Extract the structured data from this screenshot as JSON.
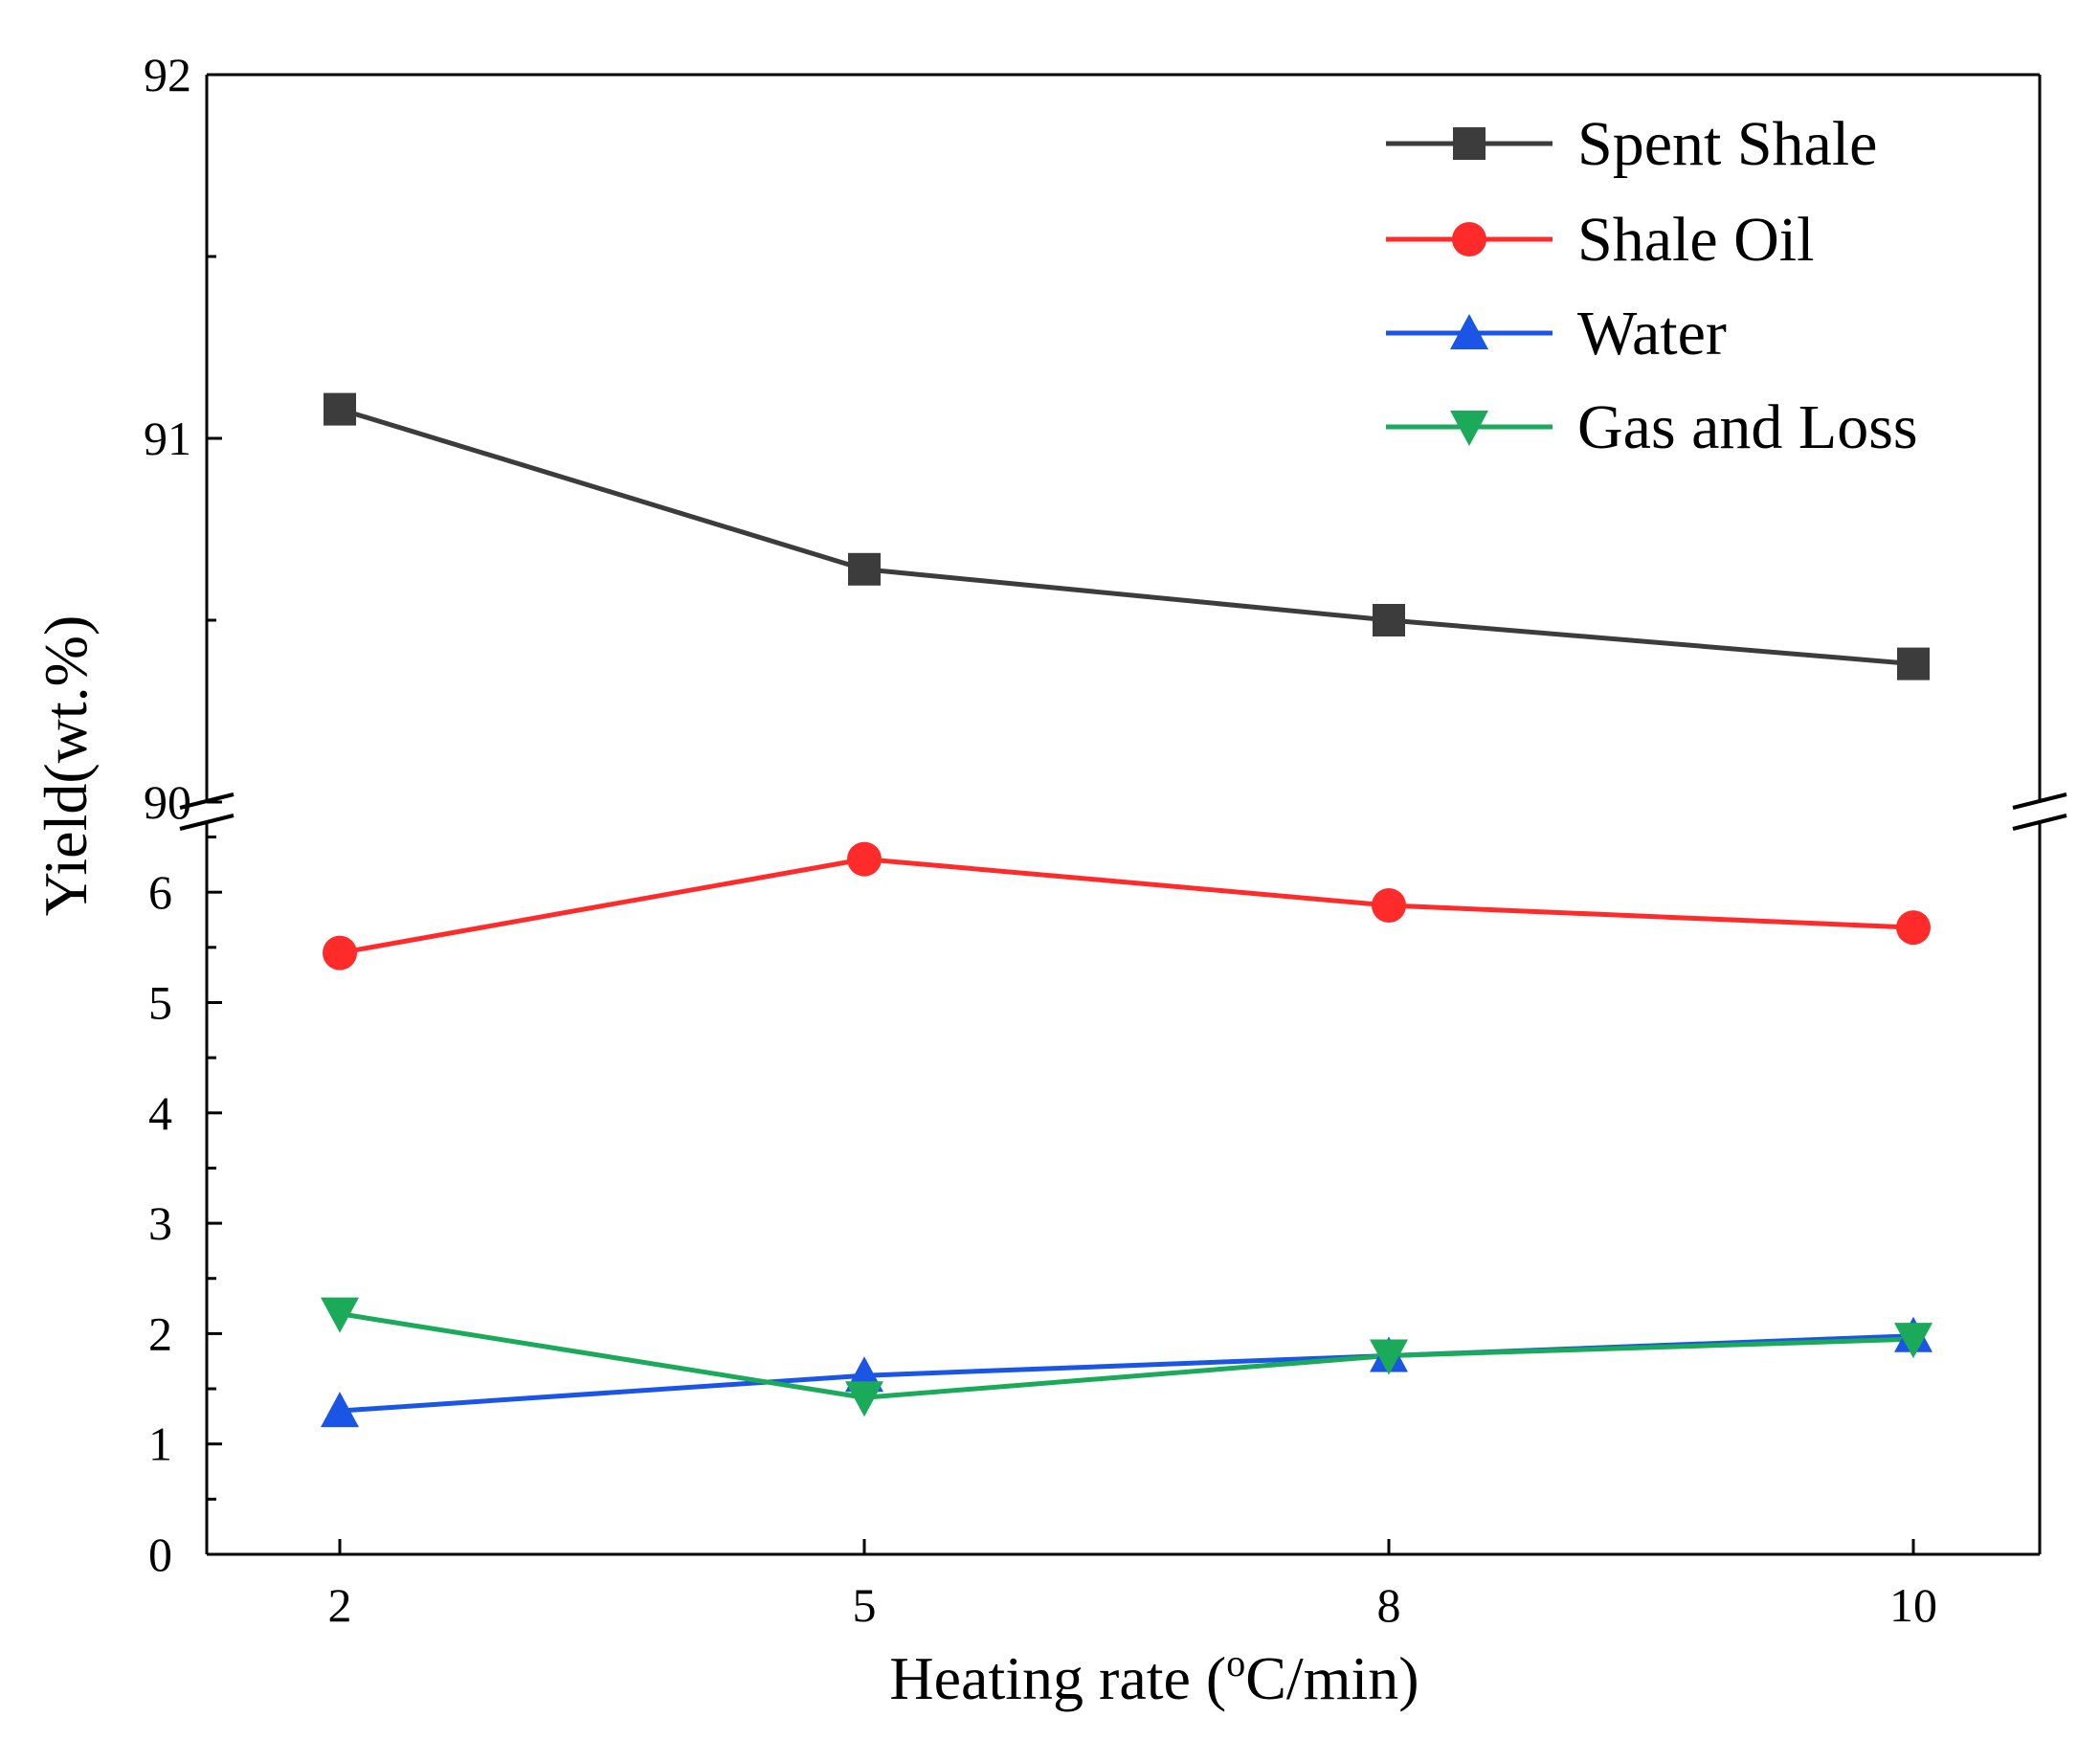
{
  "chart_data": {
    "type": "line",
    "title": "",
    "xlabel": "Heating rate (oC/min)",
    "xlabel_parts": {
      "pre": "Heating rate (",
      "sup": "o",
      "post": "C/min)"
    },
    "ylabel": "Yield(wt.%)",
    "x": [
      2,
      5,
      8,
      10
    ],
    "x_tick_labels": [
      "2",
      "5",
      "8",
      "10"
    ],
    "y_axis_break": true,
    "upper_panel": {
      "ylim": [
        90,
        92
      ],
      "ticks": [
        "90",
        "91",
        "92"
      ]
    },
    "lower_panel": {
      "ylim": [
        0,
        6.6
      ],
      "ticks": [
        "0",
        "1",
        "2",
        "3",
        "4",
        "5",
        "6"
      ]
    },
    "legend_position": "top-right",
    "series": [
      {
        "name": "Spent Shale",
        "panel": "upper",
        "marker": "square",
        "color": "#3c3c3c",
        "values": [
          91.08,
          90.64,
          90.5,
          90.38
        ]
      },
      {
        "name": "Shale Oil",
        "panel": "lower",
        "marker": "circle",
        "color": "#ff2a2a",
        "values": [
          5.45,
          6.3,
          5.88,
          5.68
        ]
      },
      {
        "name": "Water",
        "panel": "lower",
        "marker": "triangle-up",
        "color": "#1a55e6",
        "values": [
          1.3,
          1.62,
          1.8,
          1.98
        ]
      },
      {
        "name": "Gas and Loss",
        "panel": "lower",
        "marker": "triangle-down",
        "color": "#1aaa5a",
        "values": [
          2.18,
          1.42,
          1.8,
          1.95
        ]
      }
    ]
  }
}
